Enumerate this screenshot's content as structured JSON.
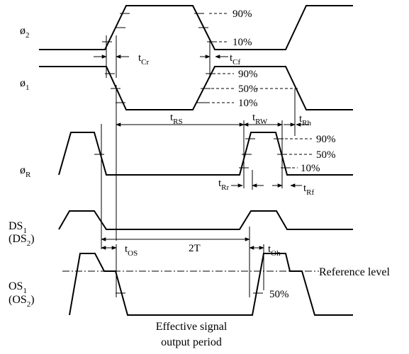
{
  "signals": {
    "phi2": {
      "main": "ø",
      "sub": "2"
    },
    "phi1": {
      "main": "ø",
      "sub": "1"
    },
    "phiR": {
      "main": "ø",
      "sub": "R"
    },
    "ds1": {
      "main": "DS",
      "sub": "1"
    },
    "ds2": {
      "main": "(DS",
      "sub": "2",
      "close": ")"
    },
    "os1": {
      "main": "OS",
      "sub": "1"
    },
    "os2": {
      "main": "(OS",
      "sub": "2",
      "close": ")"
    }
  },
  "levels": {
    "p90": "90%",
    "p50": "50%",
    "p10": "10%"
  },
  "timings": {
    "tcr": {
      "main": "t",
      "sub": "Cr"
    },
    "tcf": {
      "main": "t",
      "sub": "Cf"
    },
    "trs": {
      "main": "t",
      "sub": "RS"
    },
    "trw": {
      "main": "t",
      "sub": "RW"
    },
    "trh": {
      "main": "t",
      "sub": "Rh"
    },
    "trr": {
      "main": "t",
      "sub": "Rr"
    },
    "trf": {
      "main": "t",
      "sub": "Rf"
    },
    "tos": {
      "main": "t",
      "sub": "OS"
    },
    "toh": {
      "main": "t",
      "sub": "Oh"
    },
    "two_t": "2T"
  },
  "reference_level": "Reference level",
  "effective_line1": "Effective signal",
  "effective_line2": "output period"
}
